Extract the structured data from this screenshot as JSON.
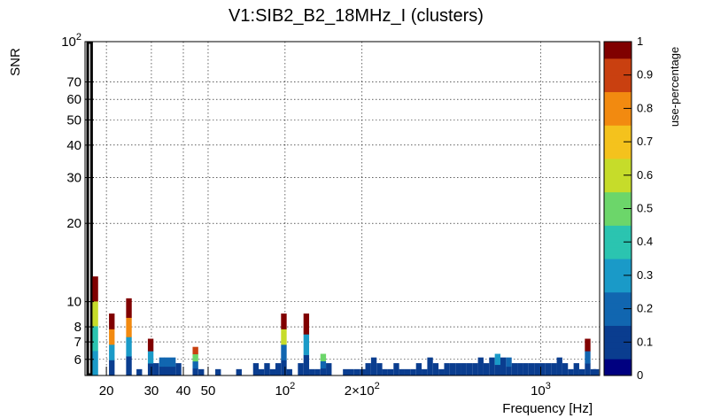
{
  "chart_data": {
    "type": "heatmap",
    "title": "V1:SIB2_B2_18MHz_I (clusters)",
    "xlabel": "Frequency [Hz]",
    "ylabel": "SNR",
    "zlabel": "use-percentage",
    "xscale": "log",
    "yscale": "log",
    "xlim": [
      16.5,
      1700
    ],
    "ylim": [
      5.2,
      100
    ],
    "grid": true,
    "x_ticks": [
      {
        "value": 20,
        "label": "20"
      },
      {
        "value": 30,
        "label": "30"
      },
      {
        "value": 40,
        "label": "40"
      },
      {
        "value": 50,
        "label": "50"
      },
      {
        "value": 100,
        "label": "10",
        "exp": "2"
      },
      {
        "value": 200,
        "label": "2×10",
        "exp": "2"
      },
      {
        "value": 1000,
        "label": "10",
        "exp": "3"
      }
    ],
    "y_ticks": [
      {
        "value": 6,
        "label": "6"
      },
      {
        "value": 7,
        "label": "7"
      },
      {
        "value": 8,
        "label": "8"
      },
      {
        "value": 10,
        "label": "10"
      },
      {
        "value": 20,
        "label": "20"
      },
      {
        "value": 30,
        "label": "30"
      },
      {
        "value": 40,
        "label": "40"
      },
      {
        "value": 50,
        "label": "50"
      },
      {
        "value": 60,
        "label": "60"
      },
      {
        "value": 70,
        "label": "70"
      },
      {
        "value": 100,
        "label": "10",
        "exp": "2"
      }
    ],
    "z_ticks": [
      "0",
      "0.1",
      "0.2",
      "0.3",
      "0.4",
      "0.5",
      "0.6",
      "0.7",
      "0.8",
      "0.9",
      "1"
    ],
    "zlim": [
      0,
      1
    ],
    "palette": [
      "#000080",
      "#0a3d8f",
      "#1166b0",
      "#1a9ac8",
      "#2bc4b0",
      "#6cd66a",
      "#c6dc2a",
      "#f4c21d",
      "#f28a10",
      "#c94010",
      "#800000"
    ],
    "bin_ratio": 1.052,
    "columns": [
      {
        "x": 17.2,
        "ymax": 100,
        "highlight": true
      },
      {
        "x": 18.1,
        "ymax": 12.5,
        "cells": [
          0.25,
          0.4,
          0.6,
          1.0
        ]
      },
      {
        "x": 21.0,
        "ymax": 9.0,
        "cells": [
          0.1,
          0.3,
          0.8,
          1.0
        ]
      },
      {
        "x": 24.5,
        "ymax": 10.3,
        "cells": [
          0.1,
          0.3,
          0.8,
          1.0
        ]
      },
      {
        "x": 26.9,
        "ymax": 5.5,
        "cells": [
          0.05
        ]
      },
      {
        "x": 29.8,
        "ymax": 7.2,
        "cells": [
          0.1,
          0.25,
          1.0
        ]
      },
      {
        "x": 31.3,
        "ymax": 5.8,
        "cells": [
          0.05
        ]
      },
      {
        "x": 33.0,
        "ymax": 6.1,
        "cells": [
          0.05,
          0.15
        ]
      },
      {
        "x": 34.6,
        "ymax": 6.1,
        "cells": [
          0.1,
          0.2
        ]
      },
      {
        "x": 36.4,
        "ymax": 6.1,
        "cells": [
          0.1,
          0.2
        ]
      },
      {
        "x": 38.3,
        "ymax": 5.8,
        "cells": [
          0.05
        ]
      },
      {
        "x": 44.6,
        "ymax": 6.7,
        "cells": [
          0.05,
          0.2,
          0.5,
          0.9
        ]
      },
      {
        "x": 47.0,
        "ymax": 5.5,
        "cells": [
          0.05
        ]
      },
      {
        "x": 54.7,
        "ymax": 5.5,
        "cells": [
          0.05
        ]
      },
      {
        "x": 66.0,
        "ymax": 5.5,
        "cells": [
          0.05
        ]
      },
      {
        "x": 76.9,
        "ymax": 5.8,
        "cells": [
          0.05
        ]
      },
      {
        "x": 80.8,
        "ymax": 5.5,
        "cells": [
          0.05
        ]
      },
      {
        "x": 85.0,
        "ymax": 5.8,
        "cells": [
          0.05
        ]
      },
      {
        "x": 89.4,
        "ymax": 5.5,
        "cells": [
          0.05
        ]
      },
      {
        "x": 94.0,
        "ymax": 5.8,
        "cells": [
          0.05
        ]
      },
      {
        "x": 98.9,
        "ymax": 9.0,
        "cells": [
          0.05,
          0.2,
          0.55,
          1.0
        ]
      },
      {
        "x": 104.0,
        "ymax": 5.5,
        "cells": [
          0.05
        ]
      },
      {
        "x": 115.1,
        "ymax": 5.8,
        "cells": [
          0.05
        ]
      },
      {
        "x": 121.1,
        "ymax": 9.0,
        "cells": [
          0.05,
          0.3,
          1.0
        ]
      },
      {
        "x": 127.4,
        "ymax": 5.5,
        "cells": [
          0.05
        ]
      },
      {
        "x": 134.0,
        "ymax": 5.5,
        "cells": [
          0.05
        ]
      },
      {
        "x": 141.0,
        "ymax": 6.3,
        "cells": [
          0.05,
          0.2,
          0.45
        ]
      },
      {
        "x": 148.3,
        "ymax": 5.8,
        "cells": [
          0.05
        ]
      },
      {
        "x": 172.7,
        "ymax": 5.5,
        "cells": [
          0.05
        ]
      },
      {
        "x": 181.6,
        "ymax": 5.5,
        "cells": [
          0.05
        ]
      },
      {
        "x": 191.1,
        "ymax": 5.5,
        "cells": [
          0.05
        ]
      },
      {
        "x": 201.0,
        "ymax": 5.5,
        "cells": [
          0.05
        ]
      },
      {
        "x": 211.4,
        "ymax": 5.8,
        "cells": [
          0.05
        ]
      },
      {
        "x": 222.4,
        "ymax": 6.1,
        "cells": [
          0.05
        ]
      },
      {
        "x": 234.0,
        "ymax": 5.8,
        "cells": [
          0.05
        ]
      },
      {
        "x": 246.1,
        "ymax": 5.5,
        "cells": [
          0.05
        ]
      },
      {
        "x": 258.9,
        "ymax": 5.5,
        "cells": [
          0.05
        ]
      },
      {
        "x": 272.4,
        "ymax": 5.8,
        "cells": [
          0.05
        ]
      },
      {
        "x": 286.5,
        "ymax": 5.5,
        "cells": [
          0.05
        ]
      },
      {
        "x": 301.4,
        "ymax": 5.5,
        "cells": [
          0.05
        ]
      },
      {
        "x": 317.1,
        "ymax": 5.5,
        "cells": [
          0.05
        ]
      },
      {
        "x": 333.6,
        "ymax": 5.8,
        "cells": [
          0.05
        ]
      },
      {
        "x": 350.9,
        "ymax": 5.5,
        "cells": [
          0.05
        ]
      },
      {
        "x": 369.2,
        "ymax": 6.1,
        "cells": [
          0.05
        ]
      },
      {
        "x": 388.4,
        "ymax": 5.8,
        "cells": [
          0.05
        ]
      },
      {
        "x": 408.6,
        "ymax": 5.5,
        "cells": [
          0.05
        ]
      },
      {
        "x": 429.8,
        "ymax": 5.8,
        "cells": [
          0.05
        ]
      },
      {
        "x": 452.2,
        "ymax": 5.8,
        "cells": [
          0.05
        ]
      },
      {
        "x": 475.7,
        "ymax": 5.8,
        "cells": [
          0.05
        ]
      },
      {
        "x": 500.4,
        "ymax": 5.8,
        "cells": [
          0.05
        ]
      },
      {
        "x": 526.4,
        "ymax": 5.8,
        "cells": [
          0.05
        ]
      },
      {
        "x": 553.8,
        "ymax": 5.8,
        "cells": [
          0.05
        ]
      },
      {
        "x": 582.6,
        "ymax": 6.1,
        "cells": [
          0.05
        ]
      },
      {
        "x": 612.9,
        "ymax": 5.8,
        "cells": [
          0.05
        ]
      },
      {
        "x": 644.8,
        "ymax": 6.1,
        "cells": [
          0.05
        ]
      },
      {
        "x": 678.3,
        "ymax": 6.3,
        "cells": [
          0.05,
          0.25
        ]
      },
      {
        "x": 713.6,
        "ymax": 6.1,
        "cells": [
          0.05
        ]
      },
      {
        "x": 750.7,
        "ymax": 6.1,
        "cells": [
          0.05,
          0.15
        ]
      },
      {
        "x": 789.7,
        "ymax": 5.8,
        "cells": [
          0.05
        ]
      },
      {
        "x": 830.8,
        "ymax": 5.8,
        "cells": [
          0.05
        ]
      },
      {
        "x": 874.0,
        "ymax": 5.8,
        "cells": [
          0.05
        ]
      },
      {
        "x": 919.4,
        "ymax": 5.8,
        "cells": [
          0.05
        ]
      },
      {
        "x": 967.2,
        "ymax": 5.8,
        "cells": [
          0.05
        ]
      },
      {
        "x": 1017.5,
        "ymax": 5.8,
        "cells": [
          0.05
        ]
      },
      {
        "x": 1070.4,
        "ymax": 5.8,
        "cells": [
          0.05
        ]
      },
      {
        "x": 1126.1,
        "ymax": 5.8,
        "cells": [
          0.05
        ]
      },
      {
        "x": 1184.6,
        "ymax": 6.1,
        "cells": [
          0.05
        ]
      },
      {
        "x": 1246.2,
        "ymax": 5.8,
        "cells": [
          0.05
        ]
      },
      {
        "x": 1311.0,
        "ymax": 5.5,
        "cells": [
          0.05
        ]
      },
      {
        "x": 1379.2,
        "ymax": 5.8,
        "cells": [
          0.05
        ]
      },
      {
        "x": 1450.9,
        "ymax": 5.5,
        "cells": [
          0.05
        ]
      },
      {
        "x": 1526.4,
        "ymax": 7.2,
        "cells": [
          0.05,
          0.2,
          1.0
        ]
      },
      {
        "x": 1605.8,
        "ymax": 5.5,
        "cells": [
          0.05
        ]
      },
      {
        "x": 1648.0,
        "ymax": 5.5,
        "cells": [
          0.05
        ]
      }
    ]
  }
}
